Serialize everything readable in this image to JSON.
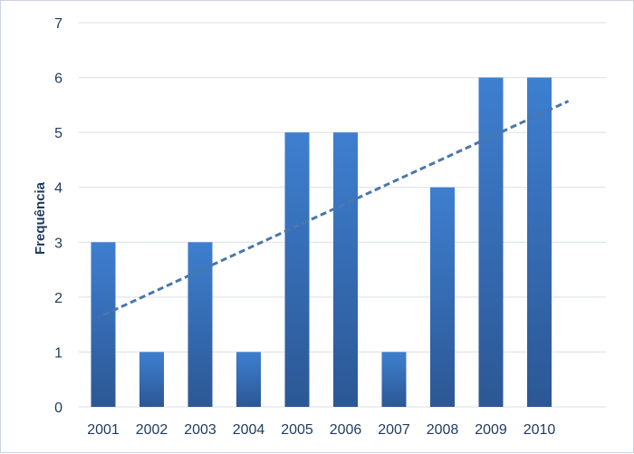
{
  "chart_data": {
    "type": "bar",
    "title": "",
    "xlabel": "",
    "ylabel": "Frequência",
    "categories": [
      "2001",
      "2002",
      "2003",
      "2004",
      "2005",
      "2006",
      "2007",
      "2008",
      "2009",
      "2010"
    ],
    "values": [
      3,
      1,
      3,
      1,
      5,
      5,
      1,
      4,
      6,
      6
    ],
    "ylim": [
      0,
      7
    ],
    "yticks": [
      "0",
      "1",
      "2",
      "3",
      "4",
      "5",
      "6",
      "7"
    ],
    "grid": true,
    "legend": "none",
    "trendline": {
      "type": "linear",
      "style": "dashed"
    },
    "colors": {
      "bar_top": "#3e7fd0",
      "bar_bottom": "#2c5794",
      "trend": "#4a77aa",
      "grid": "#d9dfe7",
      "text": "#1f3a5f"
    }
  }
}
